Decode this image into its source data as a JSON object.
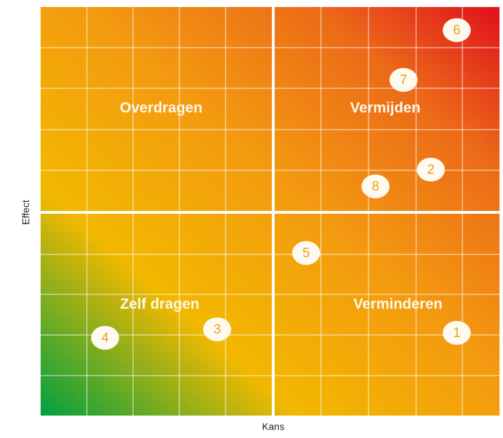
{
  "axes": {
    "x": "Kans",
    "y": "Effect"
  },
  "quadrants": [
    "Overdragen",
    "Vermijden",
    "Zelf dragen",
    "Verminderen"
  ],
  "points": [
    "1",
    "2",
    "3",
    "4",
    "5",
    "6",
    "7",
    "8"
  ]
}
